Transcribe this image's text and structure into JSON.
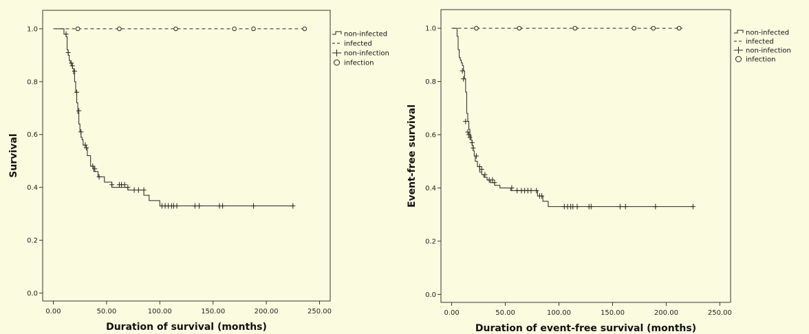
{
  "chart_data": [
    {
      "type": "line",
      "title": "",
      "xlabel": "Duration of survival (months)",
      "ylabel": "Survival",
      "xlim": [
        -10,
        260
      ],
      "ylim": [
        -0.03,
        1.07
      ],
      "xticks": [
        0,
        50,
        100,
        150,
        200,
        250
      ],
      "xtick_labels": [
        "0.00",
        "50.00",
        "100.00",
        "150.00",
        "200.00",
        "250.00"
      ],
      "yticks": [
        0,
        0.2,
        0.4,
        0.6,
        0.8,
        1.0
      ],
      "ytick_labels": [
        "0.0",
        "0.2",
        "0.4",
        "0.6",
        "0.8",
        "1.0"
      ],
      "legend": {
        "position": "right",
        "entries": [
          "non-infected",
          "infected",
          "non-infection",
          "infection"
        ]
      },
      "series": [
        {
          "name": "non-infected",
          "style": "step-solid",
          "x": [
            2,
            10,
            12,
            13,
            14,
            15,
            16,
            17,
            18,
            19,
            20,
            21,
            22,
            23,
            24,
            25,
            26,
            27,
            28,
            30,
            32,
            35,
            38,
            42,
            48,
            55,
            70,
            85,
            90,
            100,
            225
          ],
          "y": [
            1.0,
            0.98,
            0.97,
            0.92,
            0.9,
            0.88,
            0.87,
            0.86,
            0.85,
            0.83,
            0.8,
            0.76,
            0.72,
            0.68,
            0.64,
            0.61,
            0.59,
            0.58,
            0.56,
            0.55,
            0.52,
            0.48,
            0.46,
            0.44,
            0.42,
            0.4,
            0.39,
            0.37,
            0.35,
            0.33,
            0.33
          ]
        },
        {
          "name": "infected",
          "style": "dashed",
          "x": [
            0,
            238
          ],
          "y": [
            1.0,
            1.0
          ]
        }
      ],
      "censor_marks": {
        "non-infection": [
          [
            12,
            0.98
          ],
          [
            14,
            0.91
          ],
          [
            17,
            0.87
          ],
          [
            18,
            0.86
          ],
          [
            20,
            0.84
          ],
          [
            22,
            0.76
          ],
          [
            24,
            0.69
          ],
          [
            26,
            0.61
          ],
          [
            30,
            0.56
          ],
          [
            31,
            0.55
          ],
          [
            37,
            0.48
          ],
          [
            39,
            0.47
          ],
          [
            43,
            0.44
          ],
          [
            55,
            0.41
          ],
          [
            62,
            0.41
          ],
          [
            64,
            0.41
          ],
          [
            67,
            0.41
          ],
          [
            70,
            0.4
          ],
          [
            76,
            0.39
          ],
          [
            80,
            0.39
          ],
          [
            85,
            0.39
          ],
          [
            102,
            0.33
          ],
          [
            105,
            0.33
          ],
          [
            108,
            0.33
          ],
          [
            111,
            0.33
          ],
          [
            113,
            0.33
          ],
          [
            116,
            0.33
          ],
          [
            133,
            0.33
          ],
          [
            137,
            0.33
          ],
          [
            156,
            0.33
          ],
          [
            159,
            0.33
          ],
          [
            188,
            0.33
          ],
          [
            225,
            0.33
          ]
        ],
        "infection": [
          [
            23,
            1.0
          ],
          [
            62,
            1.0
          ],
          [
            115,
            1.0
          ],
          [
            170,
            1.0
          ],
          [
            188,
            1.0
          ],
          [
            236,
            1.0
          ]
        ]
      }
    },
    {
      "type": "line",
      "title": "",
      "xlabel": "Duration of event-free survival (months)",
      "ylabel": "Event-free survival",
      "xlim": [
        -10,
        260
      ],
      "ylim": [
        -0.03,
        1.07
      ],
      "xticks": [
        0,
        50,
        100,
        150,
        200,
        250
      ],
      "xtick_labels": [
        "0.00",
        "50.00",
        "100.00",
        "150.00",
        "200.00",
        "250.00"
      ],
      "yticks": [
        0,
        0.2,
        0.4,
        0.6,
        0.8,
        1.0
      ],
      "ytick_labels": [
        "0.0",
        "0.2",
        "0.4",
        "0.6",
        "0.8",
        "1.0"
      ],
      "legend": {
        "position": "right",
        "entries": [
          "non-infected",
          "infected",
          "non-infection",
          "infection"
        ]
      },
      "series": [
        {
          "name": "non-infected",
          "style": "step-solid",
          "x": [
            1,
            5,
            6,
            7,
            8,
            9,
            10,
            11,
            12,
            13,
            14,
            15,
            16,
            17,
            18,
            19,
            20,
            21,
            22,
            24,
            26,
            28,
            30,
            33,
            36,
            40,
            45,
            55,
            80,
            85,
            90,
            225
          ],
          "y": [
            1.0,
            0.97,
            0.92,
            0.89,
            0.88,
            0.87,
            0.86,
            0.84,
            0.81,
            0.76,
            0.68,
            0.65,
            0.62,
            0.6,
            0.58,
            0.56,
            0.54,
            0.52,
            0.5,
            0.48,
            0.46,
            0.45,
            0.44,
            0.43,
            0.42,
            0.41,
            0.4,
            0.39,
            0.37,
            0.35,
            0.33,
            0.33
          ]
        },
        {
          "name": "infected",
          "style": "dashed",
          "x": [
            0,
            215
          ],
          "y": [
            1.0,
            1.0
          ]
        }
      ],
      "censor_marks": {
        "non-infection": [
          [
            10,
            0.84
          ],
          [
            11,
            0.81
          ],
          [
            13,
            0.65
          ],
          [
            15,
            0.61
          ],
          [
            16,
            0.6
          ],
          [
            17,
            0.59
          ],
          [
            19,
            0.57
          ],
          [
            20,
            0.55
          ],
          [
            23,
            0.52
          ],
          [
            26,
            0.48
          ],
          [
            28,
            0.47
          ],
          [
            31,
            0.45
          ],
          [
            35,
            0.43
          ],
          [
            38,
            0.43
          ],
          [
            40,
            0.42
          ],
          [
            56,
            0.4
          ],
          [
            61,
            0.39
          ],
          [
            65,
            0.39
          ],
          [
            68,
            0.39
          ],
          [
            71,
            0.39
          ],
          [
            74,
            0.39
          ],
          [
            79,
            0.39
          ],
          [
            82,
            0.37
          ],
          [
            84,
            0.37
          ],
          [
            105,
            0.33
          ],
          [
            108,
            0.33
          ],
          [
            111,
            0.33
          ],
          [
            113,
            0.33
          ],
          [
            117,
            0.33
          ],
          [
            128,
            0.33
          ],
          [
            130,
            0.33
          ],
          [
            157,
            0.33
          ],
          [
            162,
            0.33
          ],
          [
            190,
            0.33
          ],
          [
            225,
            0.33
          ]
        ],
        "infection": [
          [
            23,
            1.0
          ],
          [
            63,
            1.0
          ],
          [
            115,
            1.0
          ],
          [
            170,
            1.0
          ],
          [
            188,
            1.0
          ],
          [
            212,
            1.0
          ]
        ]
      }
    }
  ]
}
